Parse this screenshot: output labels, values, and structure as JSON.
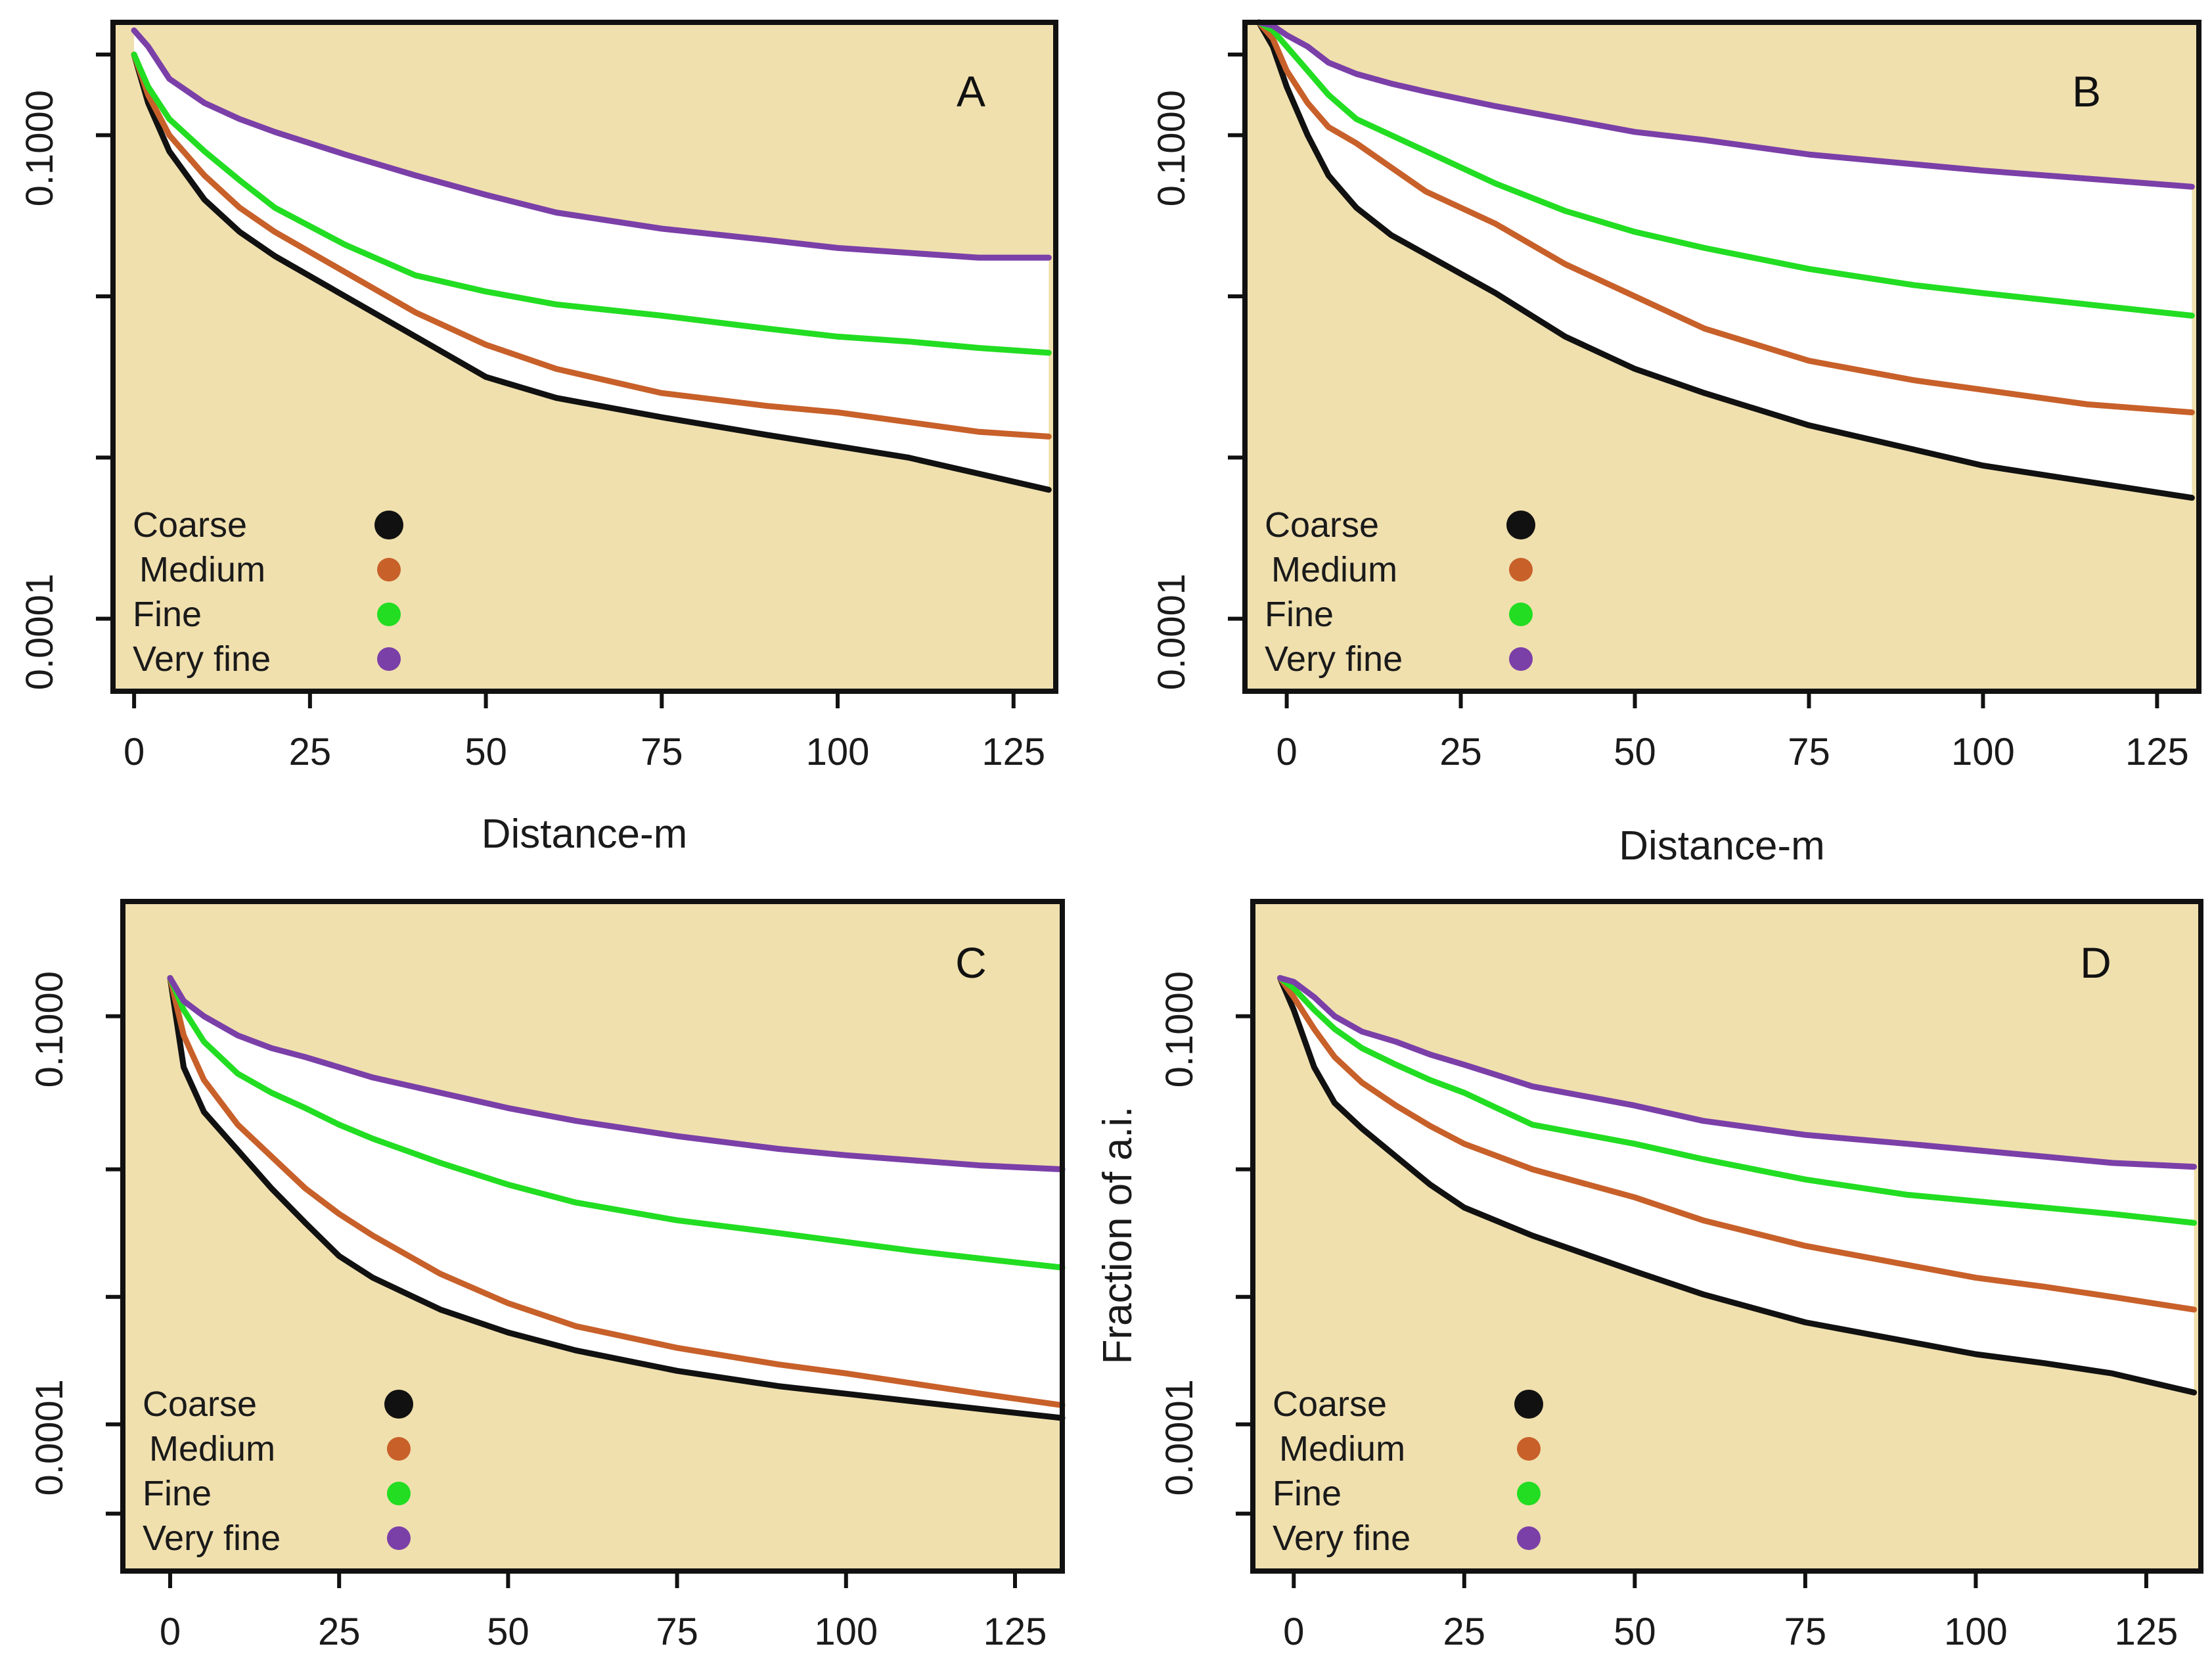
{
  "figure": {
    "shared_ylabel": "Fraction of a.i.",
    "legend_entries": [
      {
        "label": "Coarse",
        "color": "#111111"
      },
      {
        "label": "Medium",
        "color": "#c8602a"
      },
      {
        "label": "Fine",
        "color": "#22dd22"
      },
      {
        "label": "Very fine",
        "color": "#7b3fa8"
      }
    ],
    "background_color": "#f0e0ae",
    "fill_between_color": "#ffffff"
  },
  "chart_data": [
    {
      "type": "line",
      "panel": "A",
      "xlabel": "Distance-m",
      "ylabel": "",
      "x_ticks": [
        0,
        25,
        50,
        75,
        100,
        125
      ],
      "x_tick_labels": [
        "0",
        "25",
        "50",
        "75",
        "100",
        "125"
      ],
      "xlim": [
        -3,
        131
      ],
      "y_scale": "log",
      "ylim_log10": [
        -4.45,
        -0.3
      ],
      "y_tick_log10": [
        -0.5,
        -1,
        -2,
        -3,
        -4
      ],
      "y_tick_labels": [
        {
          "value_log10": -1,
          "label": "0.1000"
        },
        {
          "value_log10": -4,
          "label": "0.0001"
        }
      ],
      "x": [
        0,
        2,
        5,
        10,
        15,
        20,
        30,
        40,
        50,
        60,
        75,
        90,
        100,
        110,
        120,
        130
      ],
      "series": [
        {
          "name": "Coarse",
          "color": "#111111",
          "values": [
            -0.5,
            -0.8,
            -1.1,
            -1.4,
            -1.6,
            -1.75,
            -2.0,
            -2.25,
            -2.5,
            -2.63,
            -2.75,
            -2.86,
            -2.93,
            -3.0,
            -3.1,
            -3.2
          ]
        },
        {
          "name": "Medium",
          "color": "#c8602a",
          "values": [
            -0.5,
            -0.75,
            -1.0,
            -1.25,
            -1.45,
            -1.6,
            -1.85,
            -2.1,
            -2.3,
            -2.45,
            -2.6,
            -2.68,
            -2.72,
            -2.78,
            -2.84,
            -2.87
          ]
        },
        {
          "name": "Fine",
          "color": "#22dd22",
          "values": [
            -0.5,
            -0.7,
            -0.9,
            -1.1,
            -1.28,
            -1.45,
            -1.68,
            -1.87,
            -1.97,
            -2.05,
            -2.12,
            -2.2,
            -2.25,
            -2.28,
            -2.32,
            -2.35
          ]
        },
        {
          "name": "Very fine",
          "color": "#7b3fa8",
          "values": [
            -0.35,
            -0.45,
            -0.65,
            -0.8,
            -0.9,
            -0.98,
            -1.12,
            -1.25,
            -1.37,
            -1.48,
            -1.58,
            -1.65,
            -1.7,
            -1.73,
            -1.76,
            -1.76
          ]
        }
      ]
    },
    {
      "type": "line",
      "panel": "B",
      "xlabel": "Distance-m",
      "ylabel": "",
      "x_ticks": [
        0,
        25,
        50,
        75,
        100,
        125
      ],
      "x_tick_labels": [
        "0",
        "25",
        "50",
        "75",
        "100",
        "125"
      ],
      "xlim": [
        -6,
        131
      ],
      "y_scale": "log",
      "ylim_log10": [
        -4.45,
        -0.3
      ],
      "y_tick_log10": [
        -0.5,
        -1,
        -2,
        -3,
        -4
      ],
      "y_tick_labels": [
        {
          "value_log10": -1,
          "label": "0.1000"
        },
        {
          "value_log10": -4,
          "label": "0.0001"
        }
      ],
      "x": [
        -4,
        -2,
        0,
        3,
        6,
        10,
        15,
        20,
        30,
        40,
        50,
        60,
        75,
        90,
        100,
        115,
        130
      ],
      "series": [
        {
          "name": "Coarse",
          "color": "#111111",
          "values": [
            -0.3,
            -0.45,
            -0.7,
            -1.0,
            -1.25,
            -1.45,
            -1.62,
            -1.74,
            -1.98,
            -2.25,
            -2.45,
            -2.6,
            -2.8,
            -2.95,
            -3.05,
            -3.15,
            -3.25
          ]
        },
        {
          "name": "Medium",
          "color": "#c8602a",
          "values": [
            -0.3,
            -0.4,
            -0.6,
            -0.8,
            -0.95,
            -1.05,
            -1.2,
            -1.35,
            -1.55,
            -1.8,
            -2.0,
            -2.2,
            -2.4,
            -2.52,
            -2.58,
            -2.67,
            -2.72
          ]
        },
        {
          "name": "Fine",
          "color": "#22dd22",
          "values": [
            -0.3,
            -0.35,
            -0.45,
            -0.6,
            -0.75,
            -0.9,
            -1.0,
            -1.1,
            -1.3,
            -1.47,
            -1.6,
            -1.7,
            -1.83,
            -1.93,
            -1.98,
            -2.05,
            -2.12
          ]
        },
        {
          "name": "Very fine",
          "color": "#7b3fa8",
          "values": [
            -0.3,
            -0.32,
            -0.38,
            -0.45,
            -0.55,
            -0.62,
            -0.68,
            -0.73,
            -0.82,
            -0.9,
            -0.98,
            -1.03,
            -1.12,
            -1.18,
            -1.22,
            -1.27,
            -1.32
          ]
        }
      ]
    },
    {
      "type": "line",
      "panel": "C",
      "xlabel": "",
      "ylabel": "",
      "x_ticks": [
        0,
        25,
        50,
        75,
        100,
        125
      ],
      "x_tick_labels": [
        "0",
        "25",
        "50",
        "75",
        "100",
        "125"
      ],
      "xlim": [
        -7,
        132
      ],
      "y_scale": "log",
      "ylim_log10": [
        -5.35,
        -0.1
      ],
      "y_tick_log10": [
        -1,
        -2.2,
        -3.2,
        -4.2,
        -4.9
      ],
      "y_tick_labels": [
        {
          "value_log10": -1,
          "label": "0.1000"
        },
        {
          "value_log10": -4.2,
          "label": "0.0001"
        }
      ],
      "x": [
        0,
        2,
        5,
        10,
        15,
        20,
        25,
        30,
        40,
        50,
        60,
        75,
        90,
        100,
        110,
        120,
        132
      ],
      "series": [
        {
          "name": "Coarse",
          "color": "#111111",
          "values": [
            -0.7,
            -1.4,
            -1.75,
            -2.05,
            -2.35,
            -2.62,
            -2.88,
            -3.05,
            -3.3,
            -3.48,
            -3.62,
            -3.78,
            -3.9,
            -3.96,
            -4.02,
            -4.08,
            -4.15
          ]
        },
        {
          "name": "Medium",
          "color": "#c8602a",
          "values": [
            -0.7,
            -1.15,
            -1.5,
            -1.85,
            -2.1,
            -2.35,
            -2.55,
            -2.72,
            -3.02,
            -3.25,
            -3.43,
            -3.6,
            -3.73,
            -3.8,
            -3.88,
            -3.96,
            -4.05
          ]
        },
        {
          "name": "Fine",
          "color": "#22dd22",
          "values": [
            -0.7,
            -0.95,
            -1.2,
            -1.45,
            -1.6,
            -1.72,
            -1.85,
            -1.96,
            -2.15,
            -2.32,
            -2.46,
            -2.6,
            -2.7,
            -2.77,
            -2.84,
            -2.9,
            -2.97
          ]
        },
        {
          "name": "Very fine",
          "color": "#7b3fa8",
          "values": [
            -0.7,
            -0.88,
            -1.0,
            -1.15,
            -1.25,
            -1.32,
            -1.4,
            -1.48,
            -1.6,
            -1.72,
            -1.82,
            -1.94,
            -2.04,
            -2.09,
            -2.13,
            -2.17,
            -2.2
          ]
        }
      ]
    },
    {
      "type": "line",
      "panel": "D",
      "xlabel": "",
      "ylabel": "Fraction of a.i.",
      "x_ticks": [
        0,
        25,
        50,
        75,
        100,
        125
      ],
      "x_tick_labels": [
        "0",
        "25",
        "50",
        "75",
        "100",
        "125"
      ],
      "xlim": [
        -6,
        133
      ],
      "y_scale": "log",
      "ylim_log10": [
        -5.35,
        -0.1
      ],
      "y_tick_log10": [
        -1,
        -2.2,
        -3.2,
        -4.2,
        -4.9
      ],
      "y_tick_labels": [
        {
          "value_log10": -1,
          "label": "0.1000"
        },
        {
          "value_log10": -4.2,
          "label": "0.0001"
        }
      ],
      "x": [
        -2,
        0,
        3,
        6,
        10,
        15,
        20,
        25,
        35,
        50,
        60,
        75,
        90,
        100,
        110,
        120,
        132
      ],
      "series": [
        {
          "name": "Coarse",
          "color": "#111111",
          "values": [
            -0.7,
            -0.95,
            -1.4,
            -1.68,
            -1.88,
            -2.1,
            -2.32,
            -2.5,
            -2.72,
            -3.0,
            -3.18,
            -3.4,
            -3.55,
            -3.65,
            -3.72,
            -3.8,
            -3.95
          ]
        },
        {
          "name": "Medium",
          "color": "#c8602a",
          "values": [
            -0.7,
            -0.85,
            -1.1,
            -1.32,
            -1.52,
            -1.7,
            -1.86,
            -2.0,
            -2.2,
            -2.42,
            -2.6,
            -2.8,
            -2.95,
            -3.05,
            -3.12,
            -3.2,
            -3.3
          ]
        },
        {
          "name": "Fine",
          "color": "#22dd22",
          "values": [
            -0.7,
            -0.78,
            -0.95,
            -1.1,
            -1.25,
            -1.38,
            -1.5,
            -1.6,
            -1.85,
            -2.0,
            -2.12,
            -2.28,
            -2.4,
            -2.45,
            -2.5,
            -2.55,
            -2.62
          ]
        },
        {
          "name": "Very fine",
          "color": "#7b3fa8",
          "values": [
            -0.7,
            -0.73,
            -0.85,
            -1.0,
            -1.12,
            -1.2,
            -1.3,
            -1.38,
            -1.55,
            -1.7,
            -1.82,
            -1.93,
            -2.0,
            -2.05,
            -2.1,
            -2.15,
            -2.18
          ]
        }
      ]
    }
  ]
}
